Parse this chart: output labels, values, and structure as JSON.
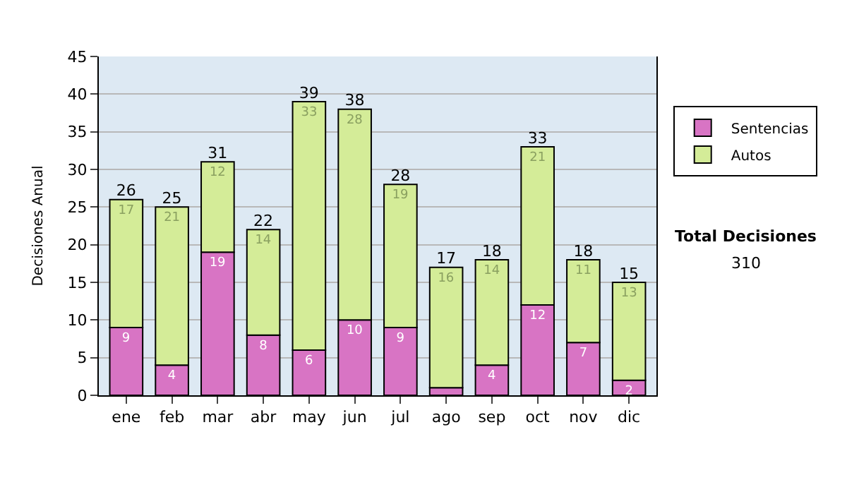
{
  "chart_data": {
    "type": "bar",
    "stacked": true,
    "ylabel": "Decisiones Anual",
    "categories": [
      "ene",
      "feb",
      "mar",
      "abr",
      "may",
      "jun",
      "jul",
      "ago",
      "sep",
      "oct",
      "nov",
      "dic"
    ],
    "series": [
      {
        "name": "Sentencias",
        "color": "#d874c4",
        "values": [
          9,
          4,
          19,
          8,
          6,
          10,
          9,
          1,
          4,
          12,
          7,
          2
        ],
        "value_labels": [
          "9",
          "4",
          "19",
          "8",
          "6",
          "10",
          "9",
          null,
          "4",
          "12",
          "7",
          "2"
        ]
      },
      {
        "name": "Autos",
        "color": "#d4ec98",
        "values": [
          17,
          21,
          12,
          14,
          33,
          28,
          19,
          16,
          14,
          21,
          11,
          13
        ],
        "value_labels": [
          "17",
          "21",
          "12",
          "14",
          "33",
          "28",
          "19",
          "16",
          "14",
          "21",
          "11",
          "13"
        ]
      }
    ],
    "totals": [
      "26",
      "25",
      "31",
      "22",
      "39",
      "38",
      "28",
      "17",
      "18",
      "33",
      "18",
      "15"
    ],
    "ylim": [
      0,
      45
    ],
    "yticks": [
      0,
      5,
      10,
      15,
      20,
      25,
      30,
      35,
      40,
      45
    ],
    "grid": "y",
    "legend": "right",
    "annotations": [
      "Total Decisiones",
      "310"
    ]
  }
}
